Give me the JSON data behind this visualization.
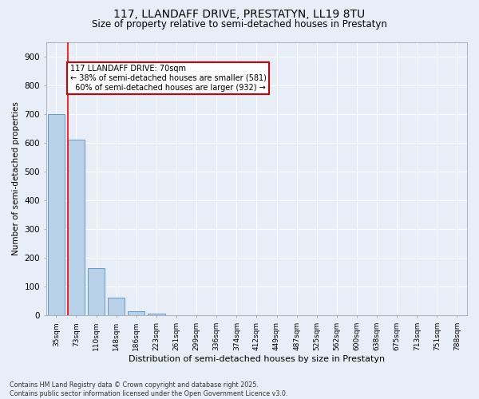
{
  "title_line1": "117, LLANDAFF DRIVE, PRESTATYN, LL19 8TU",
  "title_line2": "Size of property relative to semi-detached houses in Prestatyn",
  "xlabel": "Distribution of semi-detached houses by size in Prestatyn",
  "ylabel": "Number of semi-detached properties",
  "categories": [
    "35sqm",
    "73sqm",
    "110sqm",
    "148sqm",
    "186sqm",
    "223sqm",
    "261sqm",
    "299sqm",
    "336sqm",
    "374sqm",
    "412sqm",
    "449sqm",
    "487sqm",
    "525sqm",
    "562sqm",
    "600sqm",
    "638sqm",
    "675sqm",
    "713sqm",
    "751sqm",
    "788sqm"
  ],
  "values": [
    700,
    610,
    165,
    62,
    15,
    8,
    2,
    0,
    0,
    0,
    0,
    0,
    0,
    0,
    0,
    0,
    0,
    0,
    0,
    0,
    0
  ],
  "bar_color": "#b8d0e8",
  "bar_edge_color": "#6699cc",
  "property_line_bin": 1,
  "property_label": "117 LLANDAFF DRIVE: 70sqm",
  "smaller_pct": "38%",
  "smaller_count": 581,
  "larger_pct": "60%",
  "larger_count": 932,
  "annotation_box_edge_color": "#cc0000",
  "ylim": [
    0,
    950
  ],
  "yticks": [
    0,
    100,
    200,
    300,
    400,
    500,
    600,
    700,
    800,
    900
  ],
  "bg_color": "#e8eef8",
  "grid_color": "#ffffff",
  "footer_line1": "Contains HM Land Registry data © Crown copyright and database right 2025.",
  "footer_line2": "Contains public sector information licensed under the Open Government Licence v3.0."
}
